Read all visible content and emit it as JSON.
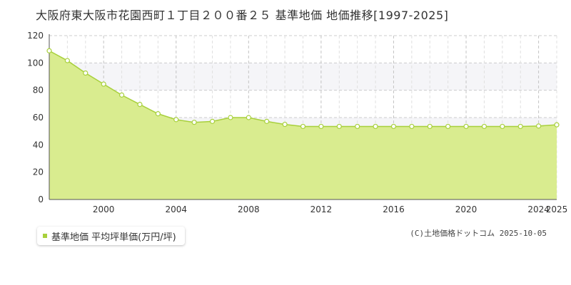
{
  "chart_data": {
    "type": "area",
    "title": "大阪府東大阪市花園西町１丁目２００番２５ 基準地価 地価推移[1997-2025]",
    "xlabel": "",
    "ylabel": "",
    "x": [
      1997,
      1998,
      1999,
      2000,
      2001,
      2002,
      2003,
      2004,
      2005,
      2006,
      2007,
      2008,
      2009,
      2010,
      2011,
      2012,
      2013,
      2014,
      2015,
      2016,
      2017,
      2018,
      2019,
      2020,
      2021,
      2022,
      2023,
      2024,
      2025
    ],
    "series": [
      {
        "name": "基準地価 平均坪単価(万円/坪)",
        "values": [
          108.9,
          101.7,
          92.6,
          84.5,
          76.5,
          69.6,
          62.8,
          58.5,
          56.5,
          57.2,
          60.0,
          60.0,
          57.2,
          55.0,
          53.5,
          53.5,
          53.5,
          53.5,
          53.5,
          53.5,
          53.5,
          53.5,
          53.5,
          53.5,
          53.5,
          53.5,
          53.5,
          53.8,
          54.7
        ]
      }
    ],
    "xlim": [
      1997,
      2025
    ],
    "ylim": [
      0,
      120
    ],
    "xticks": [
      2000,
      2004,
      2008,
      2012,
      2016,
      2020,
      2024,
      2025
    ],
    "yticks": [
      0,
      20,
      40,
      60,
      80,
      100,
      120
    ],
    "grid": true,
    "legend_position": "bottom-left",
    "colors": {
      "fill": "#d9ec8f",
      "line": "#a8d03c",
      "marker_fill": "#ffffff",
      "grid": "#cccccc",
      "band": "#f5f5f8"
    }
  },
  "legend": {
    "label": "基準地価 平均坪単価(万円/坪)"
  },
  "credit": "(C)土地価格ドットコム 2025-10-05"
}
